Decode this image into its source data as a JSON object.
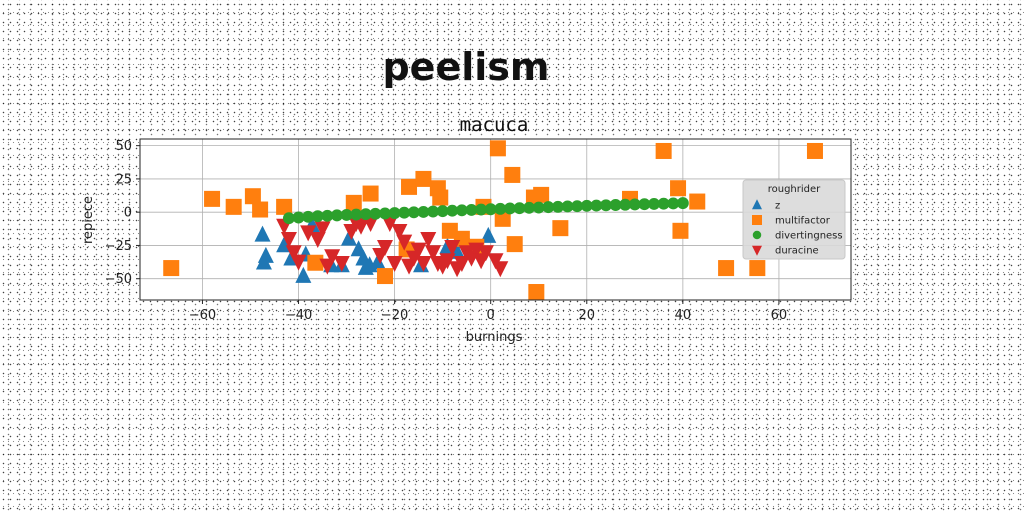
{
  "figure": {
    "suptitle": "peelism"
  },
  "chart_data": {
    "type": "scatter",
    "title": "macuca",
    "xlabel": "burnings",
    "ylabel": "repiece",
    "xlim": [
      -73,
      75
    ],
    "ylim": [
      -66,
      55
    ],
    "xticks": [
      -60,
      -40,
      -20,
      0,
      20,
      40,
      60
    ],
    "yticks": [
      -50,
      -25,
      0,
      25,
      50
    ],
    "grid": true,
    "legend": {
      "title": "roughrider",
      "placement": "center-right"
    },
    "series": [
      {
        "name": "z",
        "marker": "triangle-up",
        "color": "#1f77b4",
        "x": [
          -47.5,
          -46.8,
          -47.2,
          -43,
          -41.5,
          -39,
          -38.5,
          -37.2,
          -33.2,
          -31,
          -29.5,
          -27.5,
          -26.5,
          -26,
          -25.2,
          -23.5,
          -14.5,
          -7,
          -0.5,
          -9,
          -5
        ],
        "y": [
          -17,
          -33,
          -38,
          -25,
          -35,
          -48,
          -32,
          -10,
          -40,
          -40,
          -20,
          -28,
          -35,
          -42,
          -40,
          -38,
          -40,
          -30,
          -18,
          -26,
          -22
        ]
      },
      {
        "name": "multifactor",
        "marker": "square",
        "color": "#ff7f0e",
        "x": [
          -66.5,
          -58,
          -53.5,
          -49.5,
          -48,
          -43,
          -36.5,
          -28.5,
          -25,
          -22,
          -17.5,
          -17,
          -14,
          -11,
          -10.5,
          -8.5,
          -6,
          -3,
          -1.5,
          1.5,
          2.5,
          4.5,
          5,
          9,
          9.5,
          10.5,
          14.5,
          29,
          36,
          39,
          39.5,
          43,
          49,
          55.5,
          67.5
        ],
        "y": [
          -42,
          10,
          4,
          12,
          2,
          4,
          -38,
          7,
          14,
          -48,
          -28,
          19,
          25,
          18,
          11,
          -14,
          -20,
          -26,
          4,
          48,
          -5,
          28,
          -24,
          11,
          -60,
          13,
          -12,
          10,
          46,
          18,
          -14,
          8,
          -42,
          -42,
          46
        ]
      },
      {
        "name": "divertingness",
        "marker": "circle",
        "color": "#2ca02c",
        "x": [
          -42,
          -40,
          -38,
          -36,
          -34,
          -32,
          -30,
          -28,
          -26,
          -24,
          -22,
          -20,
          -18,
          -16,
          -14,
          -12,
          -10,
          -8,
          -6,
          -4,
          -2,
          0,
          2,
          4,
          6,
          8,
          10,
          12,
          14,
          16,
          18,
          20,
          22,
          24,
          26,
          28,
          30,
          32,
          34,
          36,
          38,
          40
        ],
        "y": [
          -4.5,
          -4,
          -3.5,
          -3,
          -2.7,
          -2.4,
          -2.1,
          -1.8,
          -1.5,
          -1.2,
          -1,
          -0.7,
          -0.4,
          -0.1,
          0.2,
          0.5,
          0.8,
          1.1,
          1.4,
          1.7,
          2,
          2.2,
          2.5,
          2.8,
          3,
          3.3,
          3.5,
          3.8,
          4,
          4.3,
          4.5,
          4.8,
          5,
          5.2,
          5.4,
          5.6,
          5.8,
          6,
          6.2,
          6.4,
          6.6,
          6.8
        ]
      },
      {
        "name": "duracine",
        "marker": "triangle-down",
        "color": "#d62728",
        "x": [
          -43,
          -42,
          -41,
          -40,
          -38,
          -36,
          -34,
          -33,
          -31,
          -29,
          -28,
          -25,
          -23,
          -21,
          -20,
          -19,
          -18,
          -17,
          -16,
          -15,
          -13,
          -12,
          -11,
          -10,
          -9,
          -8,
          -7,
          -6,
          -5,
          -4,
          -3,
          -2,
          -1,
          1,
          2,
          -27,
          -35,
          -14,
          -22
        ],
        "y": [
          -10,
          -20,
          -30,
          -37,
          -15,
          -20,
          -40,
          -33,
          -38,
          -14,
          -8,
          -8,
          -32,
          -8,
          -38,
          -14,
          -22,
          -40,
          -34,
          -28,
          -20,
          -30,
          -38,
          -40,
          -36,
          -26,
          -42,
          -38,
          -30,
          -34,
          -28,
          -36,
          -30,
          -36,
          -42,
          -10,
          -12,
          -38,
          -26
        ]
      }
    ]
  }
}
